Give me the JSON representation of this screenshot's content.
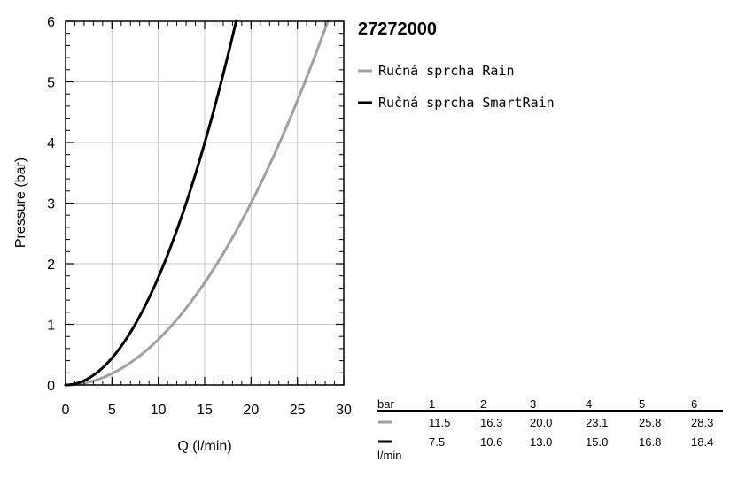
{
  "chart_data": {
    "type": "line",
    "title": "27272000",
    "xlabel": "Q (l/min)",
    "ylabel": "Pressure (bar)",
    "xlim": [
      0,
      30
    ],
    "ylim": [
      0,
      6
    ],
    "x_ticks": [
      0,
      5,
      10,
      15,
      20,
      25,
      30
    ],
    "y_ticks": [
      0,
      1,
      2,
      3,
      4,
      5,
      6
    ],
    "grid": true,
    "legend_position": "right",
    "series": [
      {
        "name": "Ručná sprcha Rain",
        "color": "#a0a0a0",
        "x": [
          0,
          11.5,
          16.3,
          20.0,
          23.1,
          25.8,
          28.3
        ],
        "y": [
          0,
          1,
          2,
          3,
          4,
          5,
          6
        ]
      },
      {
        "name": "Ručná sprcha SmartRain",
        "color": "#000000",
        "x": [
          0,
          7.5,
          10.6,
          13.0,
          15.0,
          16.8,
          18.4
        ],
        "y": [
          0,
          1,
          2,
          3,
          4,
          5,
          6
        ]
      }
    ],
    "table": {
      "header_label": "bar",
      "unit_label": "l/min",
      "pressures": [
        "1",
        "2",
        "3",
        "4",
        "5",
        "6"
      ],
      "rows": [
        {
          "series": "Ručná sprcha Rain",
          "values": [
            "11.5",
            "16.3",
            "20.0",
            "23.1",
            "25.8",
            "28.3"
          ]
        },
        {
          "series": "Ručná sprcha SmartRain",
          "values": [
            "7.5",
            "10.6",
            "13.0",
            "15.0",
            "16.8",
            "18.4"
          ]
        }
      ]
    }
  }
}
